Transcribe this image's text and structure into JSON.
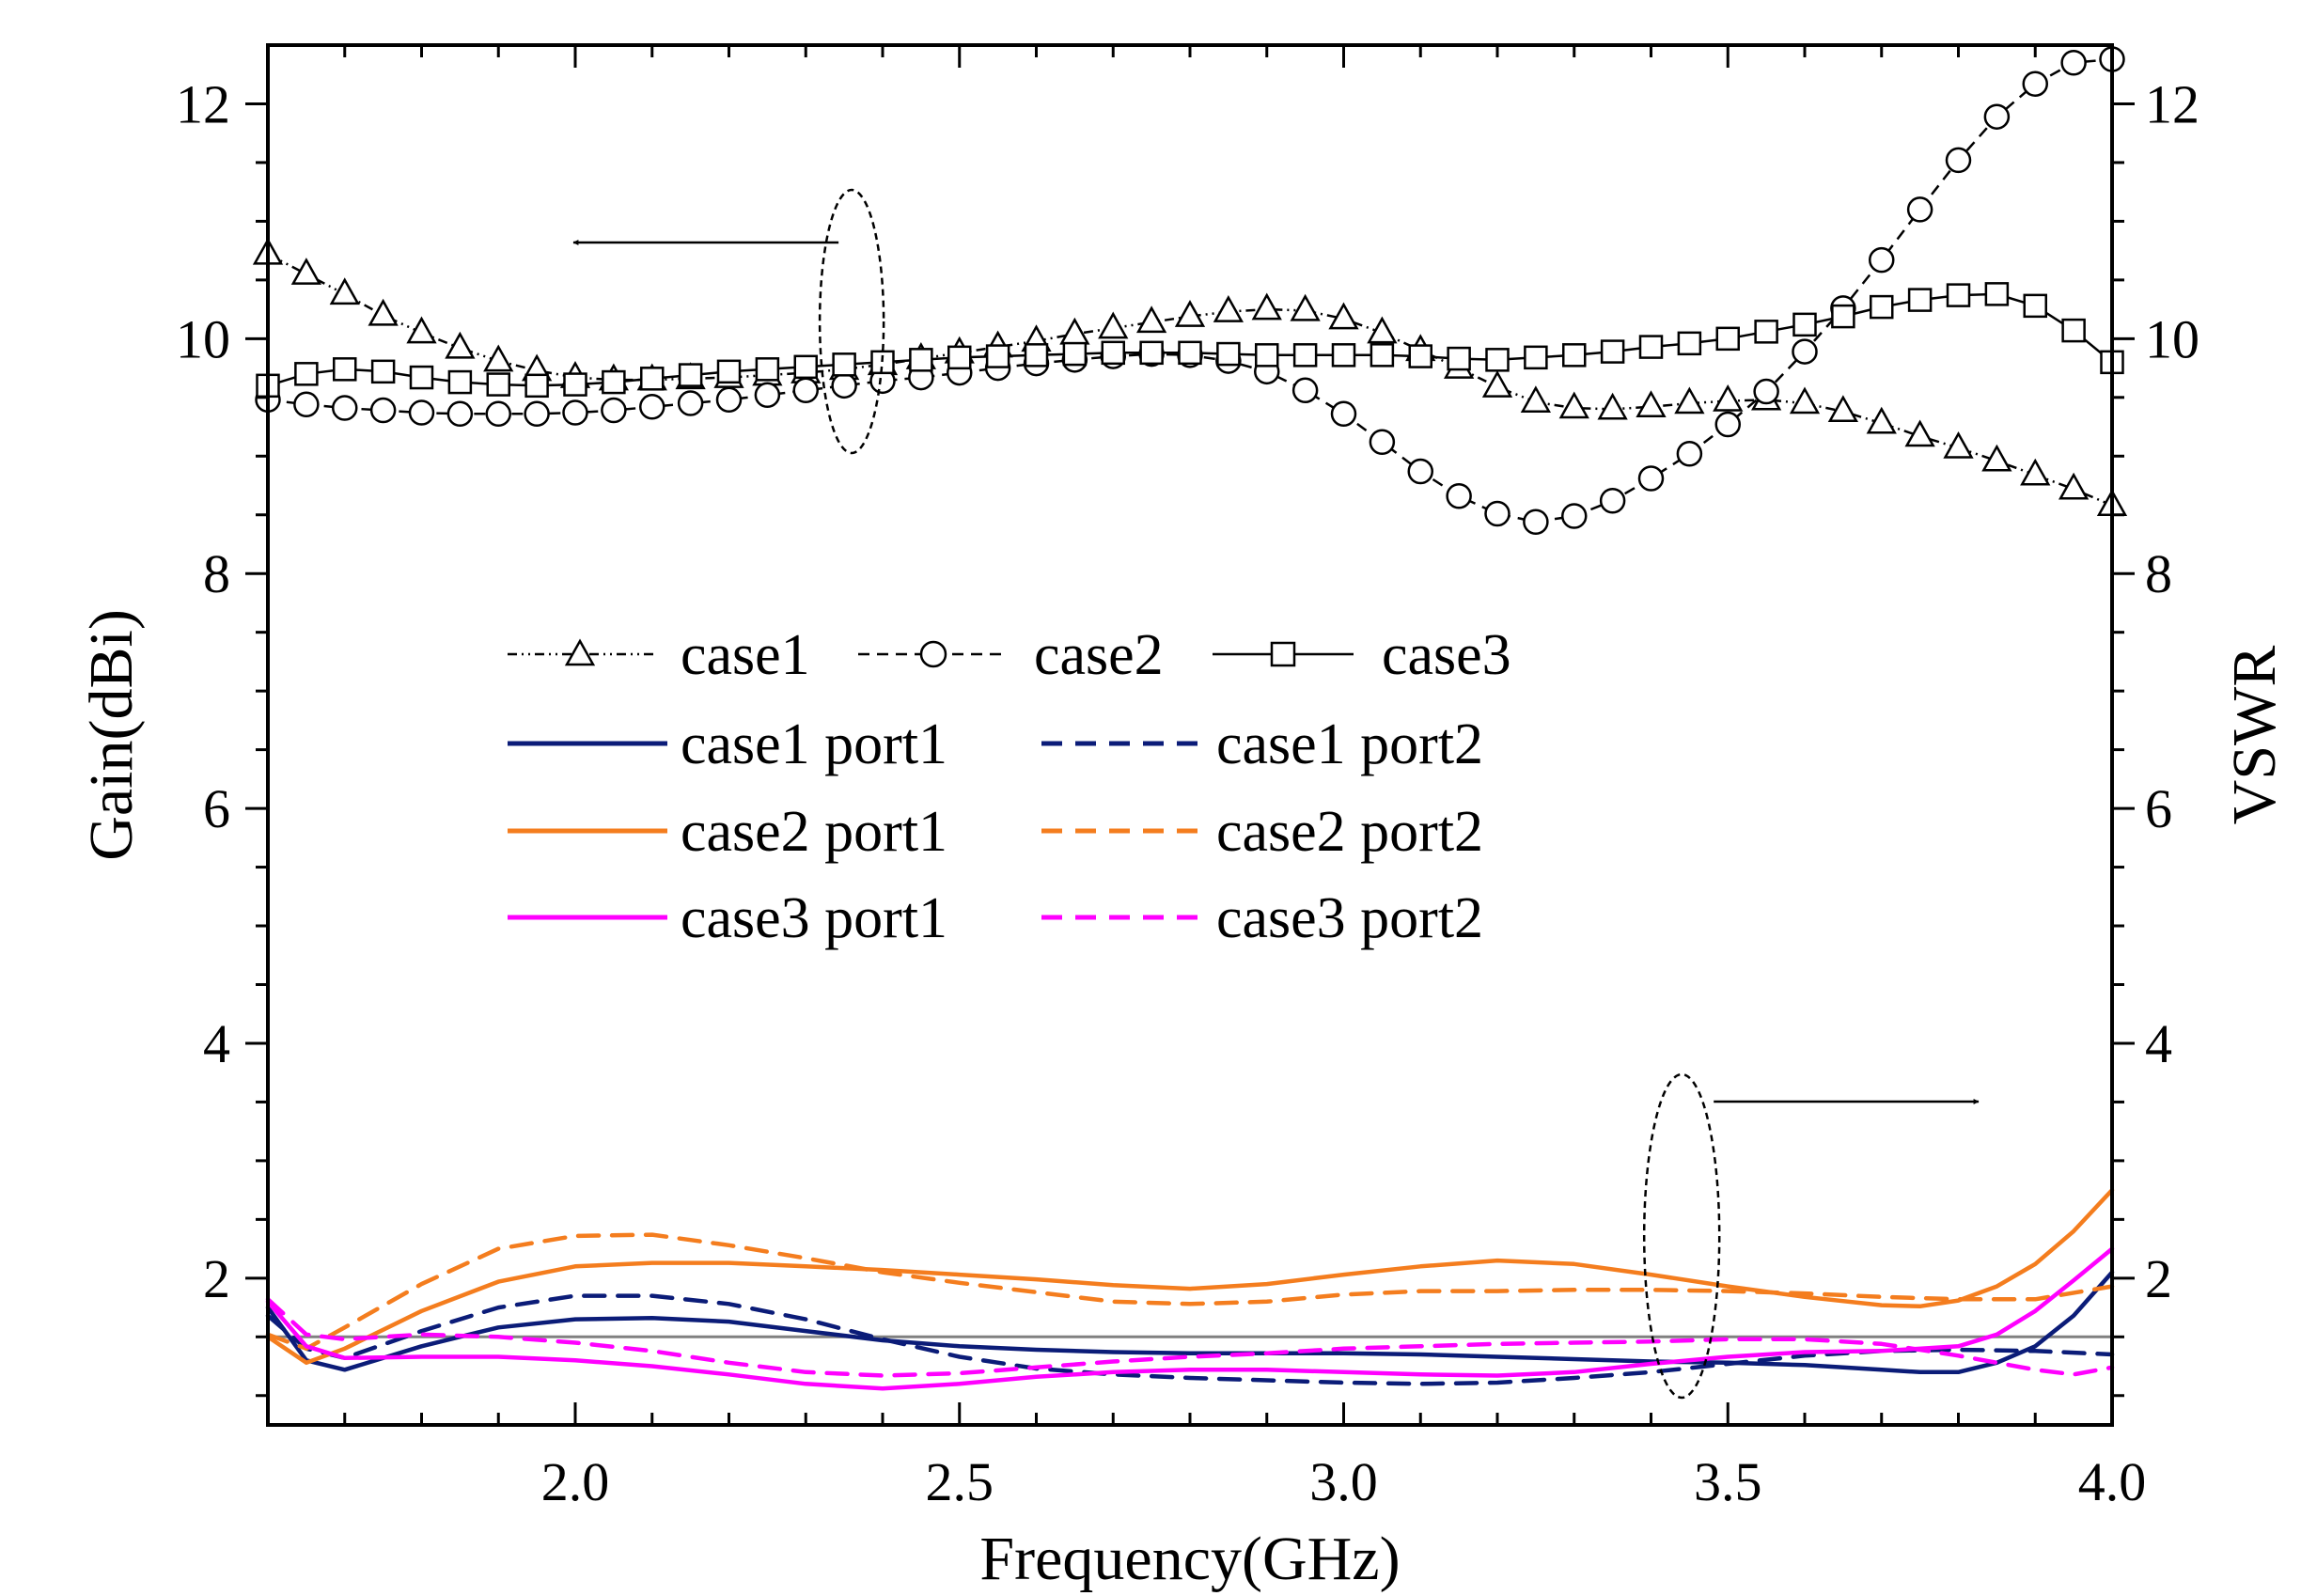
{
  "chart_data": {
    "type": "line",
    "xlabel": "Frequency(GHz)",
    "ylabel_left": "Gain(dBi)",
    "ylabel_right": "VSWR",
    "xlim": [
      1.6,
      4.0
    ],
    "ylim": [
      0.75,
      12.5
    ],
    "x_ticks": [
      2.0,
      2.5,
      3.0,
      3.5,
      4.0
    ],
    "y_ticks": [
      2,
      4,
      6,
      8,
      10,
      12
    ],
    "x_tick_labels": [
      "2.0",
      "2.5",
      "3.0",
      "3.5",
      "4.0"
    ],
    "y_tick_labels": [
      "2",
      "4",
      "6",
      "8",
      "10",
      "12"
    ],
    "y2_tick_labels": [
      "2",
      "4",
      "6",
      "8",
      "10",
      "12"
    ],
    "reference_line": {
      "y": 1.5,
      "color": "#808080"
    },
    "gain_series": [
      {
        "name": "case1",
        "axis": "left",
        "marker": "triangle",
        "dash": "dashdotdot",
        "color": "#000000",
        "x": [
          1.6,
          1.65,
          1.7,
          1.75,
          1.8,
          1.85,
          1.9,
          1.95,
          2.0,
          2.05,
          2.1,
          2.15,
          2.2,
          2.25,
          2.3,
          2.35,
          2.4,
          2.45,
          2.5,
          2.55,
          2.6,
          2.65,
          2.7,
          2.75,
          2.8,
          2.85,
          2.9,
          2.95,
          3.0,
          3.05,
          3.1,
          3.15,
          3.2,
          3.25,
          3.3,
          3.35,
          3.4,
          3.45,
          3.5,
          3.55,
          3.6,
          3.65,
          3.7,
          3.75,
          3.8,
          3.85,
          3.9,
          3.95,
          4.0
        ],
        "values": [
          10.72,
          10.55,
          10.38,
          10.2,
          10.05,
          9.92,
          9.81,
          9.73,
          9.67,
          9.65,
          9.65,
          9.66,
          9.67,
          9.69,
          9.71,
          9.74,
          9.78,
          9.83,
          9.88,
          9.93,
          9.98,
          10.04,
          10.09,
          10.14,
          10.19,
          10.23,
          10.25,
          10.24,
          10.17,
          10.05,
          9.9,
          9.75,
          9.59,
          9.46,
          9.41,
          9.4,
          9.42,
          9.45,
          9.47,
          9.48,
          9.45,
          9.38,
          9.28,
          9.17,
          9.07,
          8.96,
          8.84,
          8.72,
          8.58
        ]
      },
      {
        "name": "case2",
        "axis": "left",
        "marker": "circle",
        "dash": "dashed",
        "color": "#000000",
        "x": [
          1.6,
          1.65,
          1.7,
          1.75,
          1.8,
          1.85,
          1.9,
          1.95,
          2.0,
          2.05,
          2.1,
          2.15,
          2.2,
          2.25,
          2.3,
          2.35,
          2.4,
          2.45,
          2.5,
          2.55,
          2.6,
          2.65,
          2.7,
          2.75,
          2.8,
          2.85,
          2.9,
          2.95,
          3.0,
          3.05,
          3.1,
          3.15,
          3.2,
          3.25,
          3.3,
          3.35,
          3.4,
          3.45,
          3.5,
          3.55,
          3.6,
          3.65,
          3.7,
          3.75,
          3.8,
          3.85,
          3.9,
          3.95,
          4.0
        ],
        "values": [
          9.48,
          9.44,
          9.41,
          9.39,
          9.37,
          9.36,
          9.36,
          9.36,
          9.37,
          9.39,
          9.42,
          9.45,
          9.48,
          9.52,
          9.56,
          9.6,
          9.64,
          9.67,
          9.71,
          9.75,
          9.79,
          9.82,
          9.85,
          9.87,
          9.86,
          9.81,
          9.72,
          9.56,
          9.36,
          9.12,
          8.87,
          8.66,
          8.51,
          8.44,
          8.49,
          8.62,
          8.81,
          9.02,
          9.27,
          9.55,
          9.89,
          10.26,
          10.67,
          11.1,
          11.52,
          11.89,
          12.17,
          12.35,
          12.38
        ]
      },
      {
        "name": "case3",
        "axis": "left",
        "marker": "square",
        "dash": "solid",
        "color": "#000000",
        "x": [
          1.6,
          1.65,
          1.7,
          1.75,
          1.8,
          1.85,
          1.9,
          1.95,
          2.0,
          2.05,
          2.1,
          2.15,
          2.2,
          2.25,
          2.3,
          2.35,
          2.4,
          2.45,
          2.5,
          2.55,
          2.6,
          2.65,
          2.7,
          2.75,
          2.8,
          2.85,
          2.9,
          2.95,
          3.0,
          3.05,
          3.1,
          3.15,
          3.2,
          3.25,
          3.3,
          3.35,
          3.4,
          3.45,
          3.5,
          3.55,
          3.6,
          3.65,
          3.7,
          3.75,
          3.8,
          3.85,
          3.9,
          3.95,
          4.0
        ],
        "values": [
          9.6,
          9.7,
          9.74,
          9.72,
          9.67,
          9.63,
          9.61,
          9.6,
          9.61,
          9.63,
          9.66,
          9.69,
          9.72,
          9.74,
          9.76,
          9.78,
          9.8,
          9.82,
          9.84,
          9.85,
          9.86,
          9.87,
          9.88,
          9.88,
          9.88,
          9.87,
          9.86,
          9.86,
          9.86,
          9.86,
          9.85,
          9.83,
          9.82,
          9.84,
          9.86,
          9.89,
          9.93,
          9.96,
          10.0,
          10.06,
          10.12,
          10.19,
          10.27,
          10.33,
          10.37,
          10.38,
          10.28,
          10.07,
          9.8
        ]
      }
    ],
    "vswr_series": [
      {
        "name": "case1 port1",
        "axis": "right",
        "color": "#0B1C78",
        "dash": "solid",
        "x": [
          1.6,
          1.65,
          1.7,
          1.8,
          1.9,
          2.0,
          2.1,
          2.2,
          2.3,
          2.4,
          2.5,
          2.6,
          2.7,
          2.8,
          2.9,
          3.0,
          3.1,
          3.2,
          3.3,
          3.4,
          3.5,
          3.6,
          3.7,
          3.75,
          3.8,
          3.85,
          3.9,
          3.95,
          4.0
        ],
        "values": [
          1.75,
          1.3,
          1.22,
          1.42,
          1.58,
          1.65,
          1.66,
          1.63,
          1.55,
          1.47,
          1.42,
          1.39,
          1.37,
          1.36,
          1.36,
          1.36,
          1.35,
          1.33,
          1.31,
          1.29,
          1.28,
          1.26,
          1.22,
          1.2,
          1.2,
          1.28,
          1.42,
          1.68,
          2.05
        ]
      },
      {
        "name": "case1 port2",
        "axis": "right",
        "color": "#0B1C78",
        "dash": "dashed",
        "x": [
          1.6,
          1.65,
          1.7,
          1.8,
          1.9,
          2.0,
          2.1,
          2.2,
          2.3,
          2.4,
          2.5,
          2.6,
          2.7,
          2.8,
          2.9,
          3.0,
          3.1,
          3.2,
          3.3,
          3.4,
          3.5,
          3.6,
          3.7,
          3.8,
          3.9,
          4.0
        ],
        "values": [
          1.68,
          1.4,
          1.32,
          1.55,
          1.75,
          1.85,
          1.85,
          1.78,
          1.65,
          1.48,
          1.33,
          1.23,
          1.18,
          1.15,
          1.13,
          1.11,
          1.1,
          1.11,
          1.15,
          1.2,
          1.27,
          1.34,
          1.38,
          1.39,
          1.38,
          1.35
        ]
      },
      {
        "name": "case2 port1",
        "axis": "right",
        "color": "#F47D1E",
        "dash": "solid",
        "x": [
          1.6,
          1.65,
          1.7,
          1.8,
          1.9,
          2.0,
          2.1,
          2.2,
          2.3,
          2.4,
          2.5,
          2.6,
          2.7,
          2.8,
          2.9,
          3.0,
          3.1,
          3.2,
          3.3,
          3.4,
          3.5,
          3.6,
          3.7,
          3.75,
          3.8,
          3.85,
          3.9,
          3.95,
          4.0
        ],
        "values": [
          1.5,
          1.28,
          1.4,
          1.72,
          1.97,
          2.1,
          2.13,
          2.13,
          2.1,
          2.07,
          2.03,
          1.99,
          1.94,
          1.91,
          1.95,
          2.03,
          2.1,
          2.15,
          2.12,
          2.03,
          1.93,
          1.84,
          1.77,
          1.76,
          1.81,
          1.93,
          2.12,
          2.4,
          2.75
        ]
      },
      {
        "name": "case2 port2",
        "axis": "right",
        "color": "#F47D1E",
        "dash": "dashed",
        "x": [
          1.6,
          1.65,
          1.7,
          1.8,
          1.9,
          2.0,
          2.1,
          2.2,
          2.3,
          2.4,
          2.5,
          2.6,
          2.7,
          2.8,
          2.9,
          3.0,
          3.1,
          3.2,
          3.3,
          3.4,
          3.5,
          3.6,
          3.7,
          3.8,
          3.9,
          4.0
        ],
        "values": [
          1.52,
          1.4,
          1.58,
          1.95,
          2.25,
          2.36,
          2.37,
          2.28,
          2.17,
          2.05,
          1.96,
          1.88,
          1.8,
          1.78,
          1.8,
          1.86,
          1.89,
          1.89,
          1.9,
          1.9,
          1.89,
          1.87,
          1.84,
          1.82,
          1.82,
          1.93
        ]
      },
      {
        "name": "case3 port1",
        "axis": "right",
        "color": "#FF00FF",
        "dash": "solid",
        "x": [
          1.6,
          1.65,
          1.7,
          1.8,
          1.9,
          2.0,
          2.1,
          2.2,
          2.3,
          2.4,
          2.5,
          2.6,
          2.7,
          2.8,
          2.9,
          3.0,
          3.1,
          3.2,
          3.3,
          3.4,
          3.5,
          3.6,
          3.7,
          3.8,
          3.85,
          3.9,
          3.95,
          4.0
        ],
        "values": [
          1.8,
          1.42,
          1.32,
          1.33,
          1.33,
          1.3,
          1.25,
          1.18,
          1.1,
          1.06,
          1.1,
          1.16,
          1.2,
          1.22,
          1.22,
          1.2,
          1.18,
          1.17,
          1.2,
          1.27,
          1.33,
          1.37,
          1.38,
          1.42,
          1.52,
          1.72,
          1.98,
          2.25
        ]
      },
      {
        "name": "case3 port2",
        "axis": "right",
        "color": "#FF00FF",
        "dash": "dashed",
        "x": [
          1.6,
          1.65,
          1.7,
          1.8,
          1.9,
          2.0,
          2.1,
          2.2,
          2.3,
          2.4,
          2.5,
          2.6,
          2.7,
          2.8,
          2.9,
          3.0,
          3.1,
          3.2,
          3.3,
          3.4,
          3.5,
          3.6,
          3.7,
          3.8,
          3.9,
          3.95,
          4.0
        ],
        "values": [
          1.82,
          1.52,
          1.48,
          1.52,
          1.5,
          1.45,
          1.38,
          1.28,
          1.2,
          1.17,
          1.19,
          1.24,
          1.29,
          1.33,
          1.36,
          1.4,
          1.42,
          1.44,
          1.45,
          1.46,
          1.48,
          1.48,
          1.44,
          1.34,
          1.22,
          1.18,
          1.24
        ]
      }
    ],
    "legend": {
      "position": "center",
      "entries": [
        {
          "label": "case1",
          "series": "case1"
        },
        {
          "label": "case2",
          "series": "case2"
        },
        {
          "label": "case3",
          "series": "case3"
        },
        {
          "label": "case1 port1",
          "series": "case1 port1"
        },
        {
          "label": "case1 port2",
          "series": "case1 port2"
        },
        {
          "label": "case2 port1",
          "series": "case2 port1"
        },
        {
          "label": "case2 port2",
          "series": "case2 port2"
        },
        {
          "label": "case3 port1",
          "series": "case3 port1"
        },
        {
          "label": "case3 port2",
          "series": "case3 port2"
        }
      ]
    },
    "annotations": [
      {
        "type": "ellipse-arrow",
        "refers_to_axis": "left",
        "ellipse_center": [
          2.35,
          10.1
        ],
        "direction": "left"
      },
      {
        "type": "ellipse-arrow",
        "refers_to_axis": "right",
        "ellipse_center": [
          3.44,
          2.15
        ],
        "direction": "right"
      }
    ]
  }
}
